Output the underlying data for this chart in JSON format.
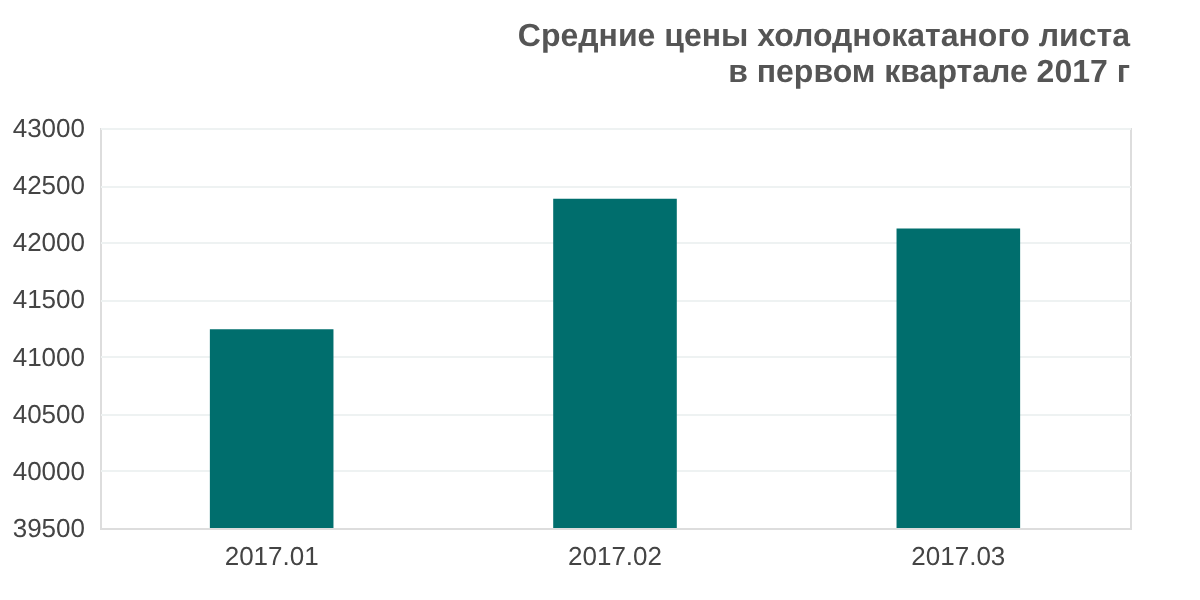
{
  "chart_data": {
    "type": "bar",
    "title": [
      "Средние цены холоднокатаного листа",
      "в первом квартале 2017 г"
    ],
    "categories": [
      "2017.01",
      "2017.02",
      "2017.03"
    ],
    "values": [
      41240,
      42380,
      42120
    ],
    "color": "#006e6d",
    "ylim": [
      39500,
      43000
    ],
    "yticks": [
      39500,
      40000,
      40500,
      41000,
      41500,
      42000,
      42500,
      43000
    ],
    "grid": "y"
  }
}
